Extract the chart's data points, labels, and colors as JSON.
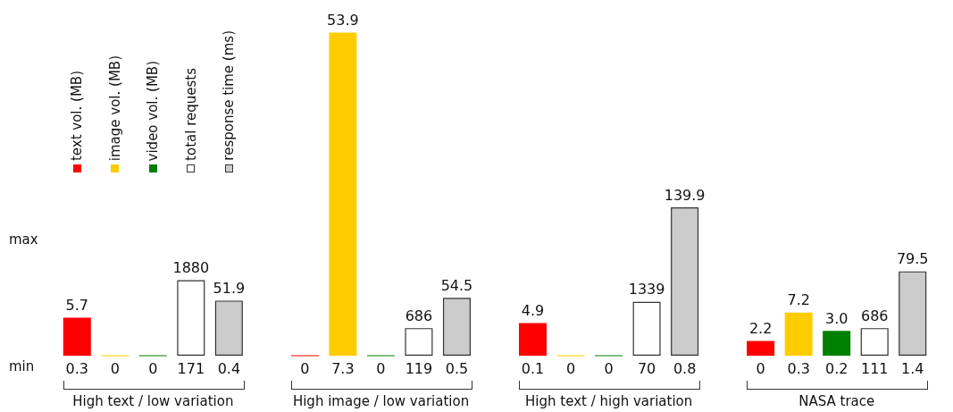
{
  "chart_data": [
    {
      "type": "bar",
      "categories": [
        "0.3",
        "0",
        "0",
        "171",
        "0.4",
        null,
        "0",
        "7.3",
        "0",
        "119",
        "0.5",
        null,
        "0.1",
        "0",
        "0",
        "70",
        "0.8",
        null,
        "0",
        "0.3",
        "0.2",
        "111",
        "1.4"
      ],
      "series": [
        {
          "name": "text vol. (MB)",
          "color": "#ff0000",
          "values": [
            5.7,
            null,
            null,
            null,
            null,
            null,
            0,
            null,
            null,
            null,
            null,
            null,
            4.9,
            null,
            null,
            null,
            null,
            null,
            2.2,
            null,
            null,
            null,
            null
          ],
          "value_labels": [
            "5.7",
            null,
            null,
            null,
            null,
            null,
            null,
            null,
            null,
            null,
            null,
            null,
            "4.9",
            null,
            null,
            null,
            null,
            null,
            "2.2",
            null,
            null,
            null,
            null
          ]
        }
      ],
      "annotations": [
        "max",
        "min",
        "High text / low variation",
        "High image / low variation",
        "High text / high variation",
        "NASA trace"
      ]
    },
    {
      "type": "bar",
      "tick_labels": false,
      "categories": [
        "0.3",
        "0",
        "0",
        "171",
        "0.4",
        null,
        "0",
        "7.3",
        "0",
        "119",
        "0.5",
        null,
        "0.1",
        "0",
        "0",
        "70",
        "0.8",
        null,
        "0",
        "0.3",
        "0.2",
        "111",
        "1.4"
      ],
      "series": [
        {
          "name": "image vol. (MB)",
          "color": "#ffcc00",
          "values": [
            null,
            0,
            null,
            null,
            null,
            null,
            null,
            53.9,
            null,
            null,
            null,
            null,
            null,
            0,
            null,
            null,
            null,
            null,
            null,
            7.2,
            null,
            null,
            null
          ],
          "value_labels": [
            null,
            null,
            null,
            null,
            null,
            null,
            null,
            "53.9",
            null,
            null,
            null,
            null,
            null,
            null,
            null,
            null,
            null,
            null,
            null,
            "7.2",
            null,
            null,
            null
          ]
        }
      ]
    },
    {
      "type": "bar",
      "tick_labels": false,
      "categories": [
        "0.3",
        "0",
        "0",
        "171",
        "0.4",
        null,
        "0",
        "7.3",
        "0",
        "119",
        "0.5",
        null,
        "0.1",
        "0",
        "0",
        "70",
        "0.8",
        null,
        "0",
        "0.3",
        "0.2",
        "111",
        "1.4"
      ],
      "series": [
        {
          "name": "video vol. (MB)",
          "color": "#008000",
          "values": [
            null,
            null,
            0,
            null,
            null,
            null,
            null,
            null,
            0,
            null,
            null,
            null,
            null,
            null,
            0,
            null,
            null,
            null,
            null,
            null,
            3.0,
            null,
            null
          ],
          "value_labels": [
            null,
            null,
            null,
            null,
            null,
            null,
            null,
            null,
            null,
            null,
            null,
            null,
            null,
            null,
            null,
            null,
            null,
            null,
            null,
            null,
            "3.0",
            null,
            null
          ]
        }
      ]
    },
    {
      "type": "bar",
      "tick_labels": false,
      "categories": [
        "0.3",
        "0",
        "0",
        "171",
        "0.4",
        null,
        "0",
        "7.3",
        "0",
        "119",
        "0.5",
        null,
        "0.1",
        "0",
        "0",
        "70",
        "0.8",
        null,
        "0",
        "0.3",
        "0.2",
        "111",
        "1.4"
      ],
      "series": [
        {
          "name": "total requests",
          "color": "#ffffff",
          "values": [
            null,
            null,
            null,
            1880,
            null,
            null,
            null,
            null,
            null,
            686,
            null,
            null,
            null,
            null,
            null,
            1339,
            null,
            null,
            null,
            null,
            null,
            686,
            null
          ],
          "value_labels": [
            null,
            null,
            null,
            "1880",
            null,
            null,
            null,
            null,
            null,
            "686",
            null,
            null,
            null,
            null,
            null,
            "1339",
            null,
            null,
            null,
            null,
            null,
            "686",
            null
          ]
        }
      ]
    },
    {
      "type": "bar",
      "tick_labels": false,
      "categories": [
        "0.3",
        "0",
        "0",
        "171",
        "0.4",
        null,
        "0",
        "7.3",
        "0",
        "119",
        "0.5",
        null,
        "0.1",
        "0",
        "0",
        "70",
        "0.8",
        null,
        "0",
        "0.3",
        "0.2",
        "111",
        "1.4"
      ],
      "series": [
        {
          "name": "response time (ms)",
          "color": "#cccccc",
          "values": [
            null,
            null,
            null,
            null,
            51.9,
            null,
            null,
            null,
            null,
            null,
            54.5,
            null,
            null,
            null,
            null,
            null,
            139.9,
            null,
            null,
            null,
            null,
            null,
            79.5
          ],
          "value_labels": [
            null,
            null,
            null,
            null,
            "51.9",
            null,
            null,
            null,
            null,
            null,
            "54.5",
            null,
            null,
            null,
            null,
            null,
            "139.9",
            null,
            null,
            null,
            null,
            null,
            "79.5"
          ]
        }
      ]
    }
  ]
}
